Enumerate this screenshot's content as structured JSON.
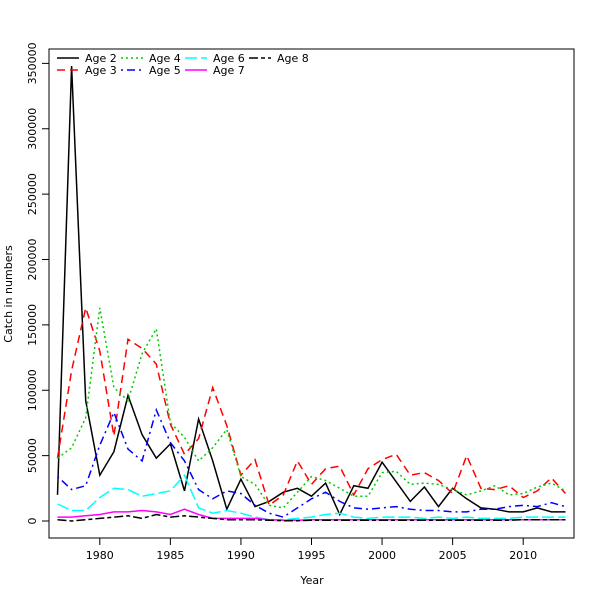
{
  "chart_data": {
    "type": "line",
    "title": "",
    "xlabel": "Year",
    "ylabel": "Catch in numbers",
    "xlim": [
      1976.4,
      1973.6
    ],
    "ylim": [
      -13000,
      361000
    ],
    "x_ticks": [
      1980,
      1985,
      1990,
      1995,
      2000,
      2005,
      2010
    ],
    "y_ticks": [
      0,
      50000,
      100000,
      150000,
      200000,
      250000,
      300000,
      350000
    ],
    "x_tick_labels": [
      "1980",
      "1985",
      "1990",
      "1995",
      "2000",
      "2005",
      "2010"
    ],
    "y_tick_labels": [
      "0",
      "50000",
      "100000",
      "150000",
      "200000",
      "250000",
      "300000",
      "350000"
    ],
    "legend_position": "top-left",
    "x": [
      1977,
      1978,
      1979,
      1980,
      1981,
      1982,
      1983,
      1984,
      1985,
      1986,
      1987,
      1988,
      1989,
      1990,
      1991,
      1992,
      1993,
      1994,
      1995,
      1996,
      1997,
      1998,
      1999,
      2000,
      2001,
      2002,
      2003,
      2004,
      2005,
      2006,
      2007,
      2008,
      2009,
      2010,
      2011,
      2012,
      2013
    ],
    "series": [
      {
        "name": "Age 2",
        "color": "#000000",
        "dash": "solid",
        "values": [
          20000,
          348000,
          92000,
          35000,
          53000,
          96000,
          66000,
          48000,
          59000,
          23000,
          78000,
          46000,
          9000,
          32000,
          11000,
          15000,
          22000,
          25000,
          19000,
          29000,
          5000,
          27000,
          25000,
          45000,
          30000,
          15000,
          26000,
          11000,
          25000,
          17000,
          10000,
          9000,
          7000,
          7000,
          10000,
          7000,
          7000
        ]
      },
      {
        "name": "Age 3",
        "color": "#ff0000",
        "dash": "dashed",
        "values": [
          48000,
          115000,
          163000,
          130000,
          65000,
          139000,
          132000,
          120000,
          74000,
          51000,
          63000,
          102000,
          73000,
          35000,
          47000,
          12000,
          20000,
          46000,
          28000,
          40000,
          42000,
          20000,
          40000,
          47000,
          51000,
          35000,
          37000,
          31000,
          21000,
          50000,
          25000,
          24000,
          27000,
          18000,
          23000,
          33000,
          21000
        ]
      },
      {
        "name": "Age 4",
        "color": "#00cc00",
        "dash": "dotted",
        "values": [
          48000,
          56000,
          79000,
          163000,
          102000,
          92000,
          128000,
          147000,
          75000,
          64000,
          46000,
          56000,
          70000,
          34000,
          28000,
          12000,
          10000,
          22000,
          34000,
          31000,
          25000,
          19000,
          19000,
          37000,
          38000,
          28000,
          29000,
          28000,
          24000,
          20000,
          23000,
          27000,
          20000,
          21000,
          26000,
          29000,
          23000
        ]
      },
      {
        "name": "Age 5",
        "color": "#0000ff",
        "dash": "dotdash",
        "values": [
          34000,
          24000,
          27000,
          58000,
          83000,
          55000,
          46000,
          85000,
          60000,
          46000,
          24000,
          17000,
          23000,
          21000,
          12000,
          6000,
          3000,
          10000,
          17000,
          22000,
          15000,
          10000,
          9000,
          10000,
          11000,
          9000,
          8000,
          8000,
          7000,
          7000,
          9000,
          9000,
          11000,
          12000,
          11000,
          14000,
          11000
        ]
      },
      {
        "name": "Age 6",
        "color": "#00ffff",
        "dash": "longdash",
        "values": [
          13000,
          8000,
          8000,
          18000,
          25000,
          24000,
          19000,
          21000,
          23000,
          35000,
          10000,
          6000,
          8000,
          6000,
          3000,
          1000,
          1000,
          2000,
          3000,
          5000,
          6000,
          3000,
          2000,
          3000,
          3000,
          3000,
          2000,
          3000,
          2000,
          3000,
          2000,
          2000,
          2000,
          3000,
          3000,
          3000,
          3000
        ]
      },
      {
        "name": "Age 7",
        "color": "#ff00ff",
        "dash": "solid",
        "values": [
          3000,
          3000,
          4000,
          5000,
          7000,
          7000,
          8000,
          7000,
          5000,
          9000,
          5000,
          2000,
          2000,
          2000,
          2000,
          1000,
          500,
          500,
          1000,
          1000,
          1000,
          1000,
          1000,
          1000,
          1000,
          1000,
          1000,
          1000,
          1000,
          1000,
          1000,
          1000,
          1000,
          1000,
          1000,
          1000,
          1000
        ]
      },
      {
        "name": "Age 8",
        "color": "#000000",
        "dash": "twodash",
        "values": [
          1000,
          0,
          1000,
          2000,
          3000,
          4000,
          2000,
          5000,
          3000,
          4000,
          3000,
          2000,
          1000,
          1000,
          1000,
          500,
          200,
          200,
          500,
          500,
          500,
          500,
          500,
          500,
          500,
          500,
          500,
          500,
          500,
          500,
          500,
          500,
          500,
          1000,
          1000,
          1000,
          1000
        ]
      }
    ]
  }
}
